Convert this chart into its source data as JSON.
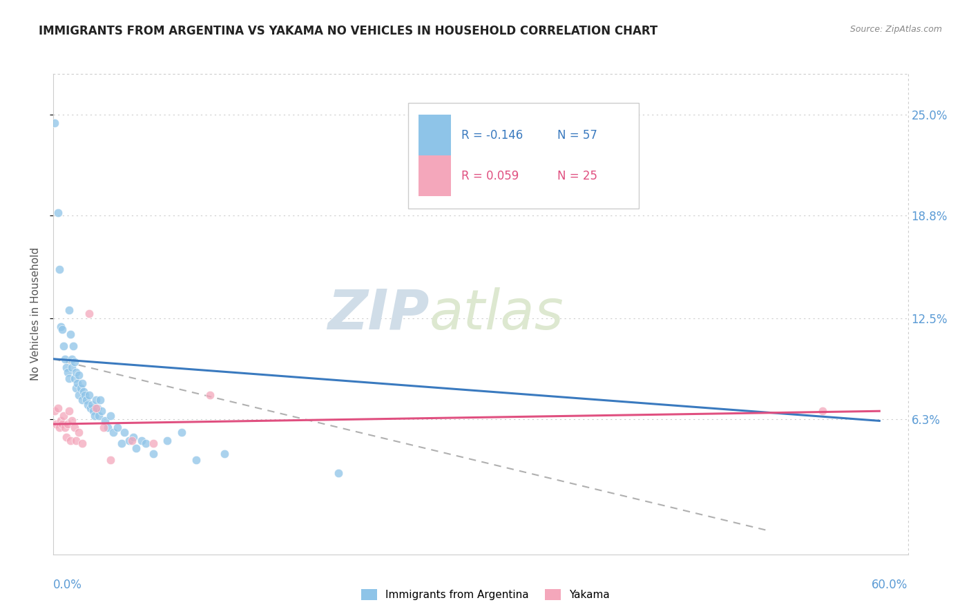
{
  "title": "IMMIGRANTS FROM ARGENTINA VS YAKAMA NO VEHICLES IN HOUSEHOLD CORRELATION CHART",
  "source_text": "Source: ZipAtlas.com",
  "ylabel": "No Vehicles in Household",
  "watermark_zip": "ZIP",
  "watermark_atlas": "atlas",
  "legend_blue_r": "R = -0.146",
  "legend_blue_n": "N = 57",
  "legend_pink_r": "R = 0.059",
  "legend_pink_n": "N = 25",
  "legend_label_blue": "Immigrants from Argentina",
  "legend_label_pink": "Yakama",
  "ytick_labels": [
    "25.0%",
    "18.8%",
    "12.5%",
    "6.3%"
  ],
  "ytick_values": [
    0.25,
    0.188,
    0.125,
    0.063
  ],
  "xmin": 0.0,
  "xmax": 0.6,
  "ymin": -0.02,
  "ymax": 0.275,
  "blue_color": "#8ec4e8",
  "pink_color": "#f4a7bb",
  "trendline_blue_color": "#3a7abf",
  "trendline_pink_color": "#e05080",
  "trendline_dashed_color": "#b0b0b0",
  "background_color": "#ffffff",
  "blue_scatter": {
    "x": [
      0.001,
      0.003,
      0.004,
      0.005,
      0.006,
      0.007,
      0.008,
      0.009,
      0.01,
      0.011,
      0.011,
      0.012,
      0.013,
      0.013,
      0.014,
      0.015,
      0.015,
      0.016,
      0.016,
      0.017,
      0.018,
      0.018,
      0.019,
      0.02,
      0.02,
      0.021,
      0.022,
      0.023,
      0.024,
      0.025,
      0.026,
      0.027,
      0.028,
      0.029,
      0.03,
      0.031,
      0.032,
      0.033,
      0.034,
      0.036,
      0.038,
      0.04,
      0.042,
      0.045,
      0.048,
      0.05,
      0.053,
      0.056,
      0.058,
      0.062,
      0.065,
      0.07,
      0.08,
      0.09,
      0.1,
      0.12,
      0.2
    ],
    "y": [
      0.245,
      0.19,
      0.155,
      0.12,
      0.118,
      0.108,
      0.1,
      0.095,
      0.092,
      0.088,
      0.13,
      0.115,
      0.1,
      0.095,
      0.108,
      0.098,
      0.088,
      0.092,
      0.082,
      0.085,
      0.09,
      0.078,
      0.082,
      0.085,
      0.075,
      0.08,
      0.078,
      0.075,
      0.072,
      0.078,
      0.07,
      0.072,
      0.068,
      0.065,
      0.075,
      0.07,
      0.065,
      0.075,
      0.068,
      0.062,
      0.058,
      0.065,
      0.055,
      0.058,
      0.048,
      0.055,
      0.05,
      0.052,
      0.045,
      0.05,
      0.048,
      0.042,
      0.05,
      0.055,
      0.038,
      0.042,
      0.03
    ]
  },
  "pink_scatter": {
    "x": [
      0.001,
      0.002,
      0.003,
      0.004,
      0.005,
      0.006,
      0.007,
      0.008,
      0.009,
      0.01,
      0.011,
      0.012,
      0.013,
      0.015,
      0.016,
      0.018,
      0.02,
      0.025,
      0.03,
      0.035,
      0.04,
      0.055,
      0.07,
      0.11,
      0.54
    ],
    "y": [
      0.068,
      0.06,
      0.07,
      0.058,
      0.062,
      0.06,
      0.065,
      0.058,
      0.052,
      0.06,
      0.068,
      0.05,
      0.062,
      0.058,
      0.05,
      0.055,
      0.048,
      0.128,
      0.07,
      0.058,
      0.038,
      0.05,
      0.048,
      0.078,
      0.068
    ]
  },
  "blue_trendline": {
    "x": [
      0.0,
      0.58
    ],
    "y": [
      0.1,
      0.062
    ]
  },
  "pink_trendline": {
    "x": [
      0.0,
      0.58
    ],
    "y": [
      0.06,
      0.068
    ]
  },
  "dashed_trendline": {
    "x": [
      0.0,
      0.5
    ],
    "y": [
      0.1,
      -0.005
    ]
  }
}
